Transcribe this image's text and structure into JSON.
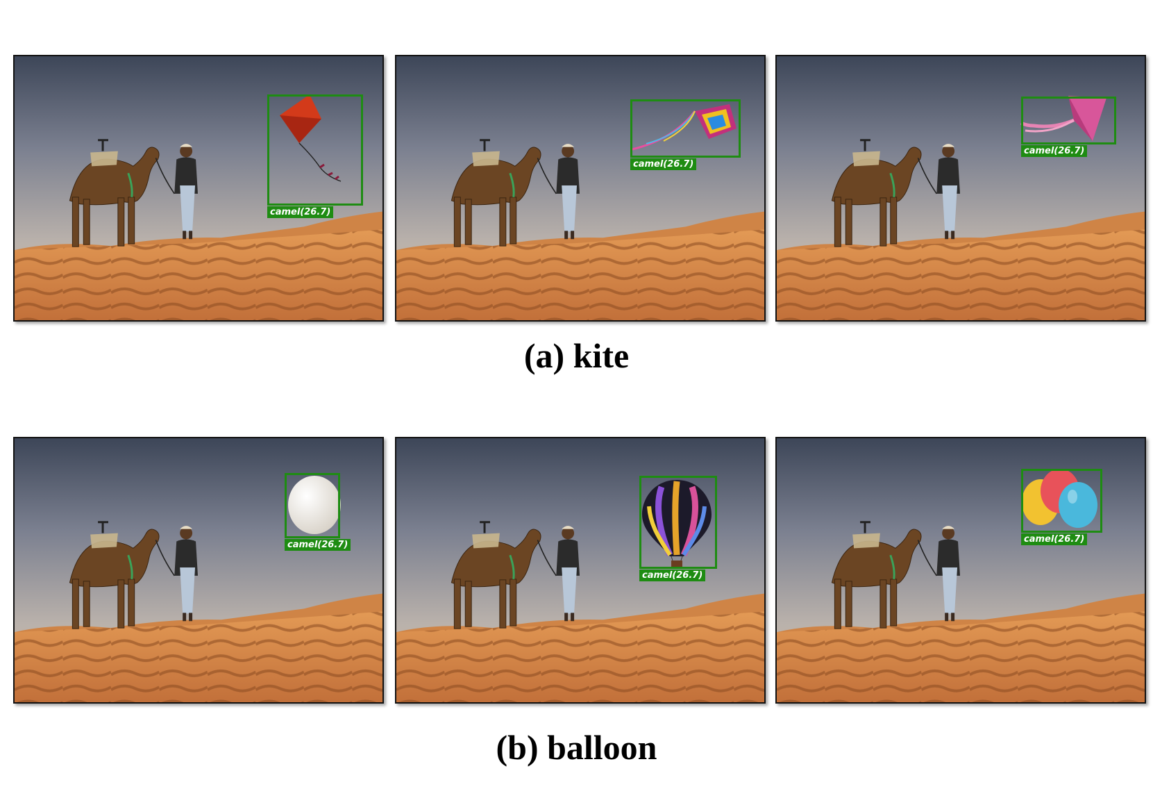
{
  "figure": {
    "rows": [
      {
        "caption": "(a) kite",
        "panels": [
          {
            "object": "kite-red",
            "detection_label": "camel(26.7)"
          },
          {
            "object": "kite-rainbow",
            "detection_label": "camel(26.7)"
          },
          {
            "object": "kite-pink",
            "detection_label": "camel(26.7)"
          }
        ]
      },
      {
        "caption": "(b) balloon",
        "panels": [
          {
            "object": "weather-balloon",
            "detection_label": "camel(26.7)"
          },
          {
            "object": "hot-air-balloon",
            "detection_label": "camel(26.7)"
          },
          {
            "object": "party-balloons",
            "detection_label": "camel(26.7)"
          }
        ]
      }
    ],
    "colors": {
      "box": "#1e8c12",
      "sky_top": "#3d4658",
      "sand": "#d58a45"
    }
  }
}
